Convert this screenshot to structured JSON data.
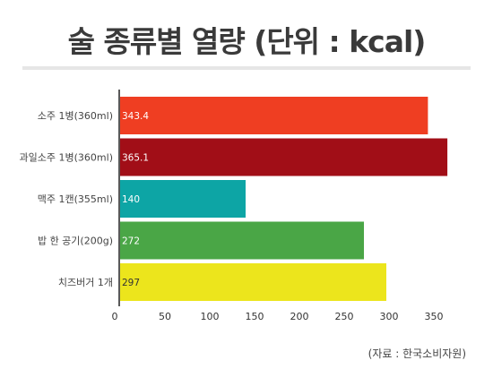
{
  "title": "술 종류별 열량 (단위 : kcal)",
  "source": "(자료 : 한국소비자원)",
  "chart_data": {
    "type": "bar",
    "orientation": "horizontal",
    "categories": [
      "소주 1병(360ml)",
      "과일소주 1병(360ml)",
      "맥주 1캔(355ml)",
      "밥 한 공기(200g)",
      "치즈버거 1개"
    ],
    "values": [
      343.4,
      365.1,
      140,
      272,
      297
    ],
    "value_labels": [
      "343.4",
      "365.1",
      "140",
      "272",
      "297"
    ],
    "colors": [
      "#ef3e22",
      "#a10e17",
      "#0da5a5",
      "#4aa646",
      "#ece51c"
    ],
    "label_colors": [
      "#ffffff",
      "#ffffff",
      "#ffffff",
      "#ffffff",
      "#333333"
    ],
    "xticks": [
      "0",
      "50",
      "100",
      "150",
      "200",
      "250",
      "300",
      "350"
    ],
    "xlim": [
      0,
      375
    ],
    "grid": false
  }
}
